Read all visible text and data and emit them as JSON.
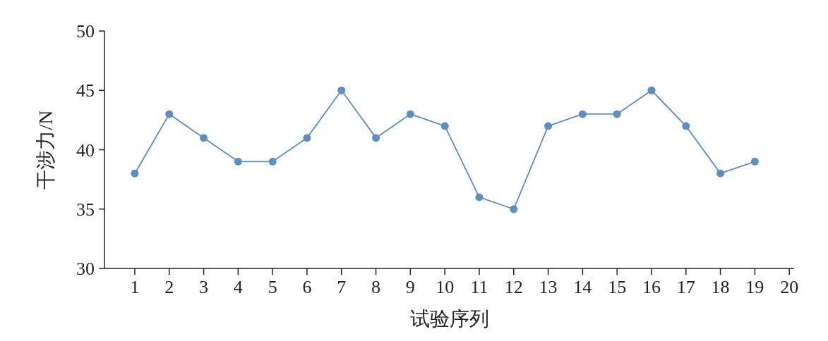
{
  "chart_data": {
    "type": "line",
    "xlabel": "试验序列",
    "ylabel": "干涉力/N",
    "x": [
      1,
      2,
      3,
      4,
      5,
      6,
      7,
      8,
      9,
      10,
      11,
      12,
      13,
      14,
      15,
      16,
      17,
      18,
      19
    ],
    "series": [
      {
        "color": "#5b8ec4",
        "values": [
          38,
          43,
          41,
          39,
          39,
          41,
          45,
          41,
          43,
          42,
          36,
          35,
          42,
          43,
          43,
          45,
          42,
          38,
          39
        ]
      }
    ],
    "xlim": [
      0.12,
      20.14
    ],
    "xticks": [
      1,
      2,
      3,
      4,
      5,
      6,
      7,
      8,
      9,
      10,
      11,
      12,
      13,
      14,
      15,
      16,
      17,
      18,
      19,
      20
    ],
    "ylim": [
      30,
      50
    ],
    "yticks": [
      30,
      35,
      40,
      45,
      50
    ],
    "marker": "circle",
    "line_style": "solid",
    "grid": false
  }
}
